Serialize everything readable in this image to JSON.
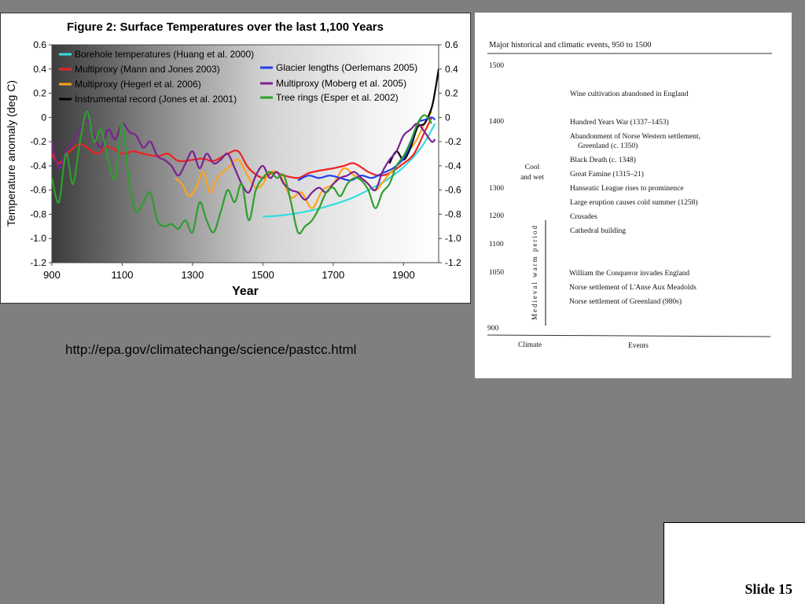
{
  "slide": {
    "number_label": "Slide 15",
    "source_url": "http://epa.gov/climatechange/science/pastcc.html"
  },
  "colors": {
    "background": "#7f7f7f",
    "panel": "#ffffff"
  },
  "chart_data": {
    "type": "line",
    "title": "Figure 2: Surface Temperatures over the last 1,100 Years",
    "xlabel": "Year",
    "ylabel": "Temperature anomaly (deg C)",
    "xlim": [
      900,
      2000
    ],
    "ylim": [
      -1.2,
      0.6
    ],
    "x_ticks": [
      900,
      1100,
      1300,
      1500,
      1700,
      1900
    ],
    "x_tick_labels": [
      "900",
      "1100",
      "1300",
      "1500",
      "1700",
      "1900"
    ],
    "y_ticks": [
      0.6,
      0.4,
      0.2,
      0,
      -0.2,
      -0.4,
      -0.6,
      -0.8,
      -1.0,
      -1.2
    ],
    "y_tick_labels": [
      "0.6",
      "0.4",
      "0.2",
      "0",
      "-0.2",
      "-0.4",
      "-0.6",
      "-0.8",
      "-1.0",
      "-1.2"
    ],
    "legend_placement": "top",
    "series": [
      {
        "name": "Borehole temperatures (Huang et al. 2000)",
        "color": "#33dddd",
        "x": [
          1500,
          1550,
          1600,
          1650,
          1700,
          1750,
          1800,
          1850,
          1900,
          1950,
          1990
        ],
        "y": [
          -0.82,
          -0.81,
          -0.79,
          -0.76,
          -0.72,
          -0.67,
          -0.6,
          -0.52,
          -0.41,
          -0.25,
          -0.05
        ]
      },
      {
        "name": "Multiproxy (Mann and Jones 2003)",
        "color": "#ee2222",
        "x": [
          900,
          920,
          950,
          980,
          1000,
          1030,
          1060,
          1100,
          1130,
          1160,
          1200,
          1230,
          1260,
          1300,
          1330,
          1360,
          1400,
          1430,
          1460,
          1500,
          1530,
          1560,
          1600,
          1630,
          1660,
          1700,
          1730,
          1760,
          1800,
          1830,
          1860,
          1900,
          1930,
          1960,
          1980
        ],
        "y": [
          -0.3,
          -0.38,
          -0.28,
          -0.22,
          -0.25,
          -0.3,
          -0.24,
          -0.3,
          -0.28,
          -0.3,
          -0.32,
          -0.3,
          -0.36,
          -0.35,
          -0.34,
          -0.36,
          -0.3,
          -0.28,
          -0.42,
          -0.5,
          -0.45,
          -0.48,
          -0.5,
          -0.46,
          -0.44,
          -0.42,
          -0.4,
          -0.38,
          -0.45,
          -0.48,
          -0.46,
          -0.38,
          -0.3,
          -0.12,
          0.0
        ]
      },
      {
        "name": "Multiproxy (Hegerl et al. 2006)",
        "color": "#ffa31a",
        "x": [
          1250,
          1270,
          1290,
          1310,
          1330,
          1350,
          1370,
          1400,
          1430,
          1460,
          1480,
          1500,
          1520,
          1550,
          1580,
          1610,
          1640,
          1670,
          1700,
          1730,
          1760,
          1790,
          1820,
          1850,
          1880,
          1900,
          1930,
          1960,
          1980
        ],
        "y": [
          -0.5,
          -0.55,
          -0.65,
          -0.58,
          -0.45,
          -0.62,
          -0.5,
          -0.42,
          -0.35,
          -0.5,
          -0.58,
          -0.55,
          -0.45,
          -0.48,
          -0.66,
          -0.62,
          -0.75,
          -0.6,
          -0.55,
          -0.42,
          -0.48,
          -0.52,
          -0.6,
          -0.5,
          -0.4,
          -0.32,
          -0.22,
          -0.05,
          0.05
        ]
      },
      {
        "name": "Instrumental record (Jones et al. 2001)",
        "color": "#000000",
        "x": [
          1860,
          1880,
          1900,
          1920,
          1940,
          1960,
          1980,
          1990,
          2000
        ],
        "y": [
          -0.38,
          -0.28,
          -0.35,
          -0.25,
          -0.08,
          -0.05,
          0.08,
          0.22,
          0.4
        ]
      },
      {
        "name": "Glacier lengths (Oerlemans 2005)",
        "color": "#1f3fee",
        "x": [
          1600,
          1630,
          1660,
          1690,
          1720,
          1750,
          1780,
          1810,
          1840,
          1870,
          1900,
          1920,
          1940,
          1960,
          1980,
          1990
        ],
        "y": [
          -0.52,
          -0.48,
          -0.5,
          -0.48,
          -0.5,
          -0.52,
          -0.48,
          -0.5,
          -0.46,
          -0.42,
          -0.34,
          -0.22,
          -0.05,
          -0.02,
          0.0,
          -0.02
        ]
      },
      {
        "name": "Multiproxy (Moberg et al. 2005)",
        "color": "#7b2290",
        "x": [
          900,
          920,
          940,
          960,
          980,
          1000,
          1020,
          1040,
          1060,
          1080,
          1100,
          1120,
          1140,
          1160,
          1180,
          1200,
          1220,
          1240,
          1260,
          1280,
          1300,
          1320,
          1340,
          1360,
          1380,
          1400,
          1420,
          1440,
          1460,
          1480,
          1500,
          1520,
          1540,
          1560,
          1580,
          1600,
          1620,
          1640,
          1660,
          1680,
          1700,
          1720,
          1740,
          1760,
          1780,
          1800,
          1820,
          1840,
          1860,
          1880,
          1900,
          1920,
          1940,
          1960,
          1980,
          1990
        ],
        "y": [
          -0.2,
          -0.42,
          -0.28,
          -0.2,
          -0.1,
          -0.02,
          -0.15,
          -0.25,
          -0.1,
          -0.18,
          -0.05,
          -0.12,
          -0.15,
          -0.25,
          -0.2,
          -0.32,
          -0.35,
          -0.4,
          -0.48,
          -0.38,
          -0.28,
          -0.42,
          -0.3,
          -0.38,
          -0.35,
          -0.3,
          -0.42,
          -0.55,
          -0.62,
          -0.48,
          -0.4,
          -0.5,
          -0.45,
          -0.55,
          -0.6,
          -0.62,
          -0.68,
          -0.62,
          -0.58,
          -0.62,
          -0.55,
          -0.5,
          -0.48,
          -0.45,
          -0.5,
          -0.55,
          -0.6,
          -0.45,
          -0.35,
          -0.28,
          -0.15,
          -0.1,
          -0.05,
          -0.12,
          -0.2,
          -0.18
        ]
      },
      {
        "name": "Tree rings (Esper et al. 2002)",
        "color": "#2e9e2e",
        "x": [
          900,
          920,
          940,
          960,
          980,
          1000,
          1020,
          1040,
          1060,
          1080,
          1100,
          1120,
          1140,
          1160,
          1180,
          1200,
          1220,
          1240,
          1260,
          1280,
          1300,
          1320,
          1340,
          1360,
          1380,
          1400,
          1420,
          1440,
          1460,
          1480,
          1500,
          1520,
          1540,
          1560,
          1580,
          1600,
          1620,
          1640,
          1660,
          1680,
          1700,
          1720,
          1740,
          1760,
          1780,
          1800,
          1820,
          1840,
          1860,
          1880,
          1900,
          1920,
          1940,
          1960,
          1980
        ],
        "y": [
          -0.5,
          -0.7,
          -0.3,
          -0.55,
          -0.2,
          0.05,
          -0.2,
          -0.1,
          -0.35,
          -0.5,
          -0.05,
          -0.55,
          -0.78,
          -0.7,
          -0.62,
          -0.85,
          -0.9,
          -0.88,
          -0.92,
          -0.85,
          -0.95,
          -0.7,
          -0.85,
          -0.95,
          -0.78,
          -0.6,
          -0.7,
          -0.55,
          -0.85,
          -0.6,
          -0.5,
          -0.45,
          -0.5,
          -0.48,
          -0.7,
          -0.95,
          -0.9,
          -0.85,
          -0.75,
          -0.62,
          -0.58,
          -0.65,
          -0.55,
          -0.5,
          -0.52,
          -0.6,
          -0.75,
          -0.62,
          -0.55,
          -0.4,
          -0.32,
          -0.2,
          -0.05,
          0.02,
          -0.05
        ]
      }
    ]
  },
  "events_table": {
    "title": "Major historical and climatic events, 950 to 1500",
    "year_labels": [
      "1500",
      "1400",
      "1300",
      "1200",
      "1100",
      "1050",
      "900"
    ],
    "climate_cool": [
      "Cool",
      "and wet"
    ],
    "climate_warm": "Medieval warm period",
    "events": [
      "Wine cultivation abandoned in England",
      "Hundred Years War (1337–1453)",
      "Abandonment of Norse Western settlement,",
      "Greenland (c. 1350)",
      "Black Death (c. 1348)",
      "Great Famine (1315–21)",
      "Hanseatic League rises to prominence",
      "Large eruption causes cold summer (1258)",
      "Crusades",
      "Cathedral building",
      "William the Conqueror invades England",
      "Norse settlement of L'Anse Aux Meadolds",
      "Norse settlement of Greenland (980s)"
    ],
    "footer_climate": "Climate",
    "footer_events": "Events"
  }
}
